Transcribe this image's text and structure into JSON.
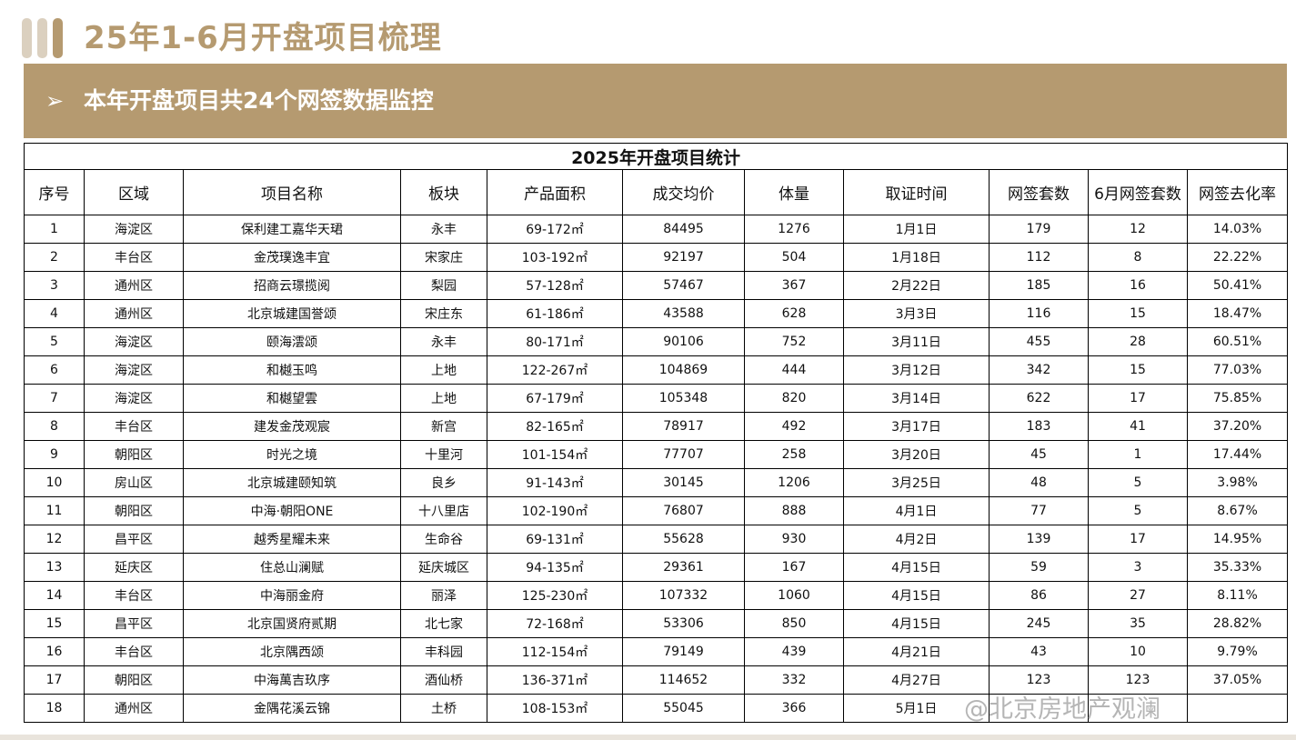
{
  "slide": {
    "title": "25年1-6月开盘项目梳理",
    "banner": {
      "bullet": "➢",
      "text": "本年开盘项目共24个网签数据监控"
    },
    "colors": {
      "accent": "#b59a70",
      "bar_dark": "#b59a70",
      "bar_light": "#dbd0bf"
    }
  },
  "table": {
    "caption": "2025年开盘项目统计",
    "headers": [
      "序号",
      "区域",
      "项目名称",
      "板块",
      "产品面积",
      "成交均价",
      "体量",
      "取证时间",
      "网签套数",
      "6月网签套数",
      "网签去化率"
    ],
    "rows": [
      [
        "1",
        "海淀区",
        "保利建工嘉华天珺",
        "永丰",
        "69-172㎡",
        "84495",
        "1276",
        "1月1日",
        "179",
        "12",
        "14.03%"
      ],
      [
        "2",
        "丰台区",
        "金茂璞逸丰宜",
        "宋家庄",
        "103-192㎡",
        "92197",
        "504",
        "1月18日",
        "112",
        "8",
        "22.22%"
      ],
      [
        "3",
        "通州区",
        "招商云璟揽阅",
        "梨园",
        "57-128㎡",
        "57467",
        "367",
        "2月22日",
        "185",
        "16",
        "50.41%"
      ],
      [
        "4",
        "通州区",
        "北京城建国誉颂",
        "宋庄东",
        "61-186㎡",
        "43588",
        "628",
        "3月3日",
        "116",
        "15",
        "18.47%"
      ],
      [
        "5",
        "海淀区",
        "颐海澐颂",
        "永丰",
        "80-171㎡",
        "90106",
        "752",
        "3月11日",
        "455",
        "28",
        "60.51%"
      ],
      [
        "6",
        "海淀区",
        "和樾玉鸣",
        "上地",
        "122-267㎡",
        "104869",
        "444",
        "3月12日",
        "342",
        "15",
        "77.03%"
      ],
      [
        "7",
        "海淀区",
        "和樾望雲",
        "上地",
        "67-179㎡",
        "105348",
        "820",
        "3月14日",
        "622",
        "17",
        "75.85%"
      ],
      [
        "8",
        "丰台区",
        "建发金茂观宸",
        "新宫",
        "82-165㎡",
        "78917",
        "492",
        "3月17日",
        "183",
        "41",
        "37.20%"
      ],
      [
        "9",
        "朝阳区",
        "时光之境",
        "十里河",
        "101-154㎡",
        "77707",
        "258",
        "3月20日",
        "45",
        "1",
        "17.44%"
      ],
      [
        "10",
        "房山区",
        "北京城建颐知筑",
        "良乡",
        "91-143㎡",
        "30145",
        "1206",
        "3月25日",
        "48",
        "5",
        "3.98%"
      ],
      [
        "11",
        "朝阳区",
        "中海·朝阳ONE",
        "十八里店",
        "102-190㎡",
        "76807",
        "888",
        "4月1日",
        "77",
        "5",
        "8.67%"
      ],
      [
        "12",
        "昌平区",
        "越秀星耀未来",
        "生命谷",
        "69-131㎡",
        "55628",
        "930",
        "4月2日",
        "139",
        "17",
        "14.95%"
      ],
      [
        "13",
        "延庆区",
        "住总山澜赋",
        "延庆城区",
        "94-135㎡",
        "29361",
        "167",
        "4月15日",
        "59",
        "3",
        "35.33%"
      ],
      [
        "14",
        "丰台区",
        "中海丽金府",
        "丽泽",
        "125-230㎡",
        "107332",
        "1060",
        "4月15日",
        "86",
        "27",
        "8.11%"
      ],
      [
        "15",
        "昌平区",
        "北京国贤府贰期",
        "北七家",
        "72-168㎡",
        "53306",
        "850",
        "4月15日",
        "245",
        "35",
        "28.82%"
      ],
      [
        "16",
        "丰台区",
        "北京隅西颂",
        "丰科园",
        "112-154㎡",
        "79149",
        "439",
        "4月21日",
        "43",
        "10",
        "9.79%"
      ],
      [
        "17",
        "朝阳区",
        "中海萬吉玖序",
        "酒仙桥",
        "136-371㎡",
        "114652",
        "332",
        "4月27日",
        "123",
        "123",
        "37.05%"
      ],
      [
        "18",
        "通州区",
        "金隅花溪云锦",
        "土桥",
        "108-153㎡",
        "55045",
        "366",
        "5月1日",
        "",
        "",
        ""
      ]
    ]
  },
  "watermark": "@北京房地产观澜"
}
